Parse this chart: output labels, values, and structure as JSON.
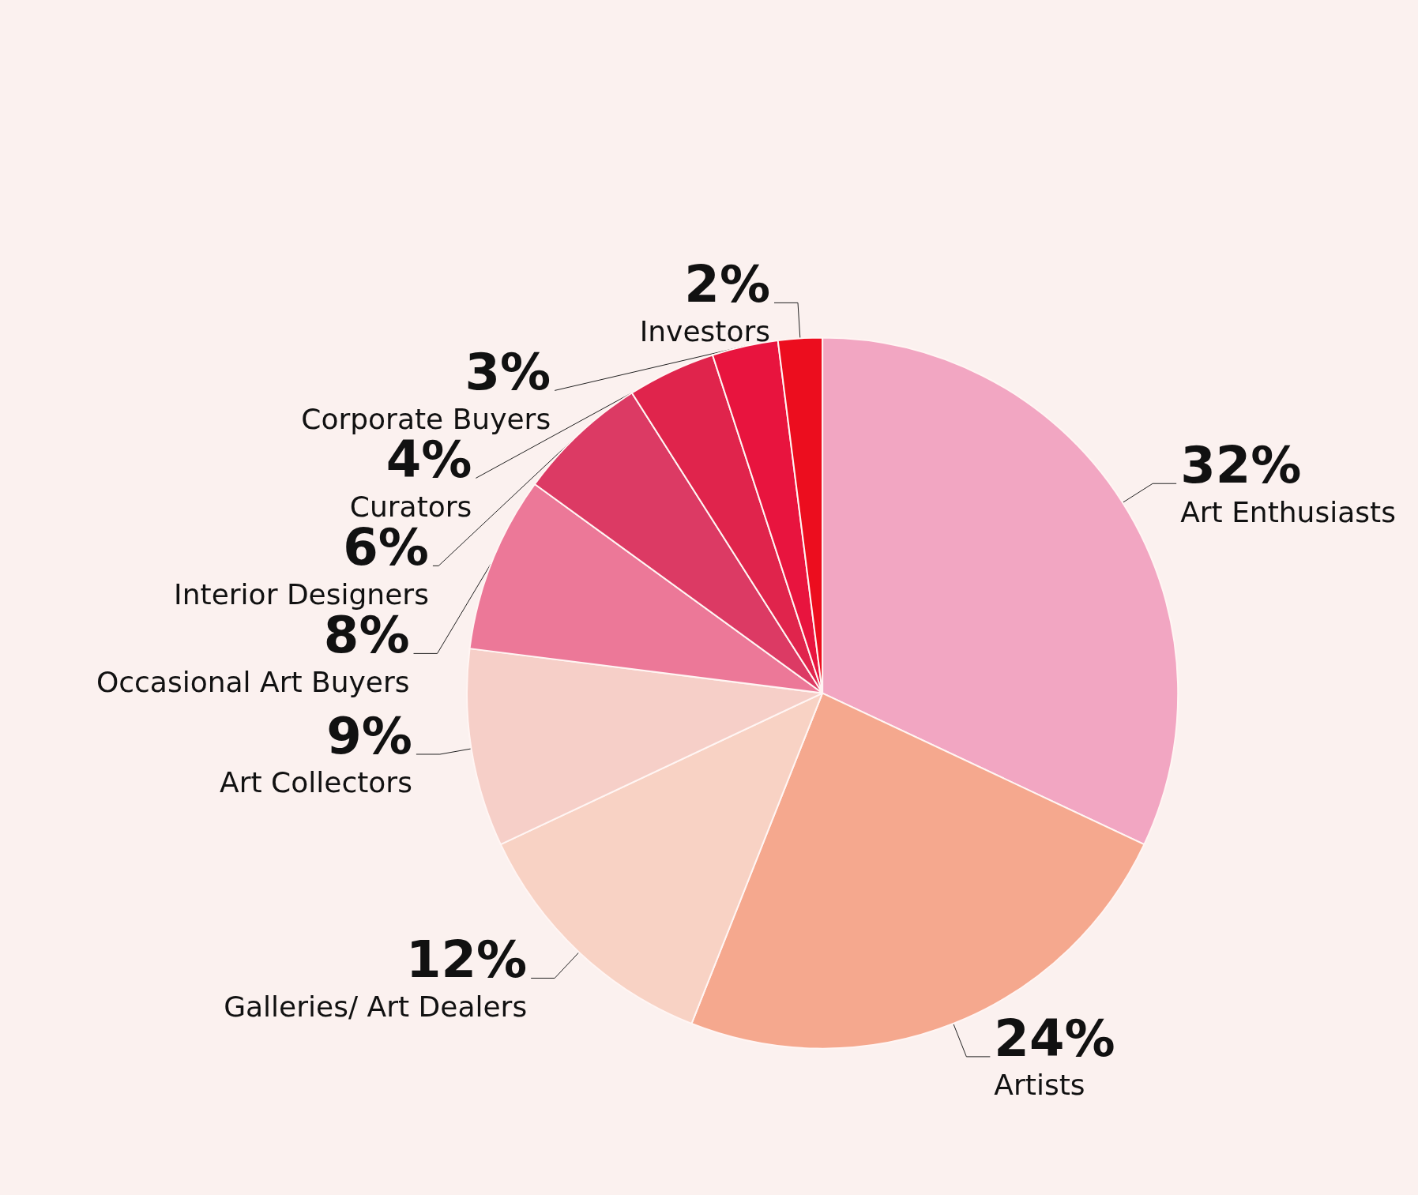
{
  "chart_data": {
    "type": "pie",
    "categories": [
      "Art Enthusiasts",
      "Artists",
      "Galleries/ Art Dealers",
      "Art Collectors",
      "Occasional Art Buyers",
      "Interior Designers",
      "Curators",
      "Corporate Buyers",
      "Investors"
    ],
    "values": [
      32,
      24,
      12,
      9,
      8,
      6,
      4,
      3,
      2
    ],
    "value_labels": [
      "32%",
      "24%",
      "12%",
      "9%",
      "8%",
      "6%",
      "4%",
      "3%",
      "2%"
    ],
    "colors": [
      "#f2a6c2",
      "#f5a88e",
      "#f8d2c4",
      "#f6cfc8",
      "#ec7898",
      "#dc3a64",
      "#e0244c",
      "#e8143e",
      "#ec0d1e"
    ],
    "legend": false
  }
}
